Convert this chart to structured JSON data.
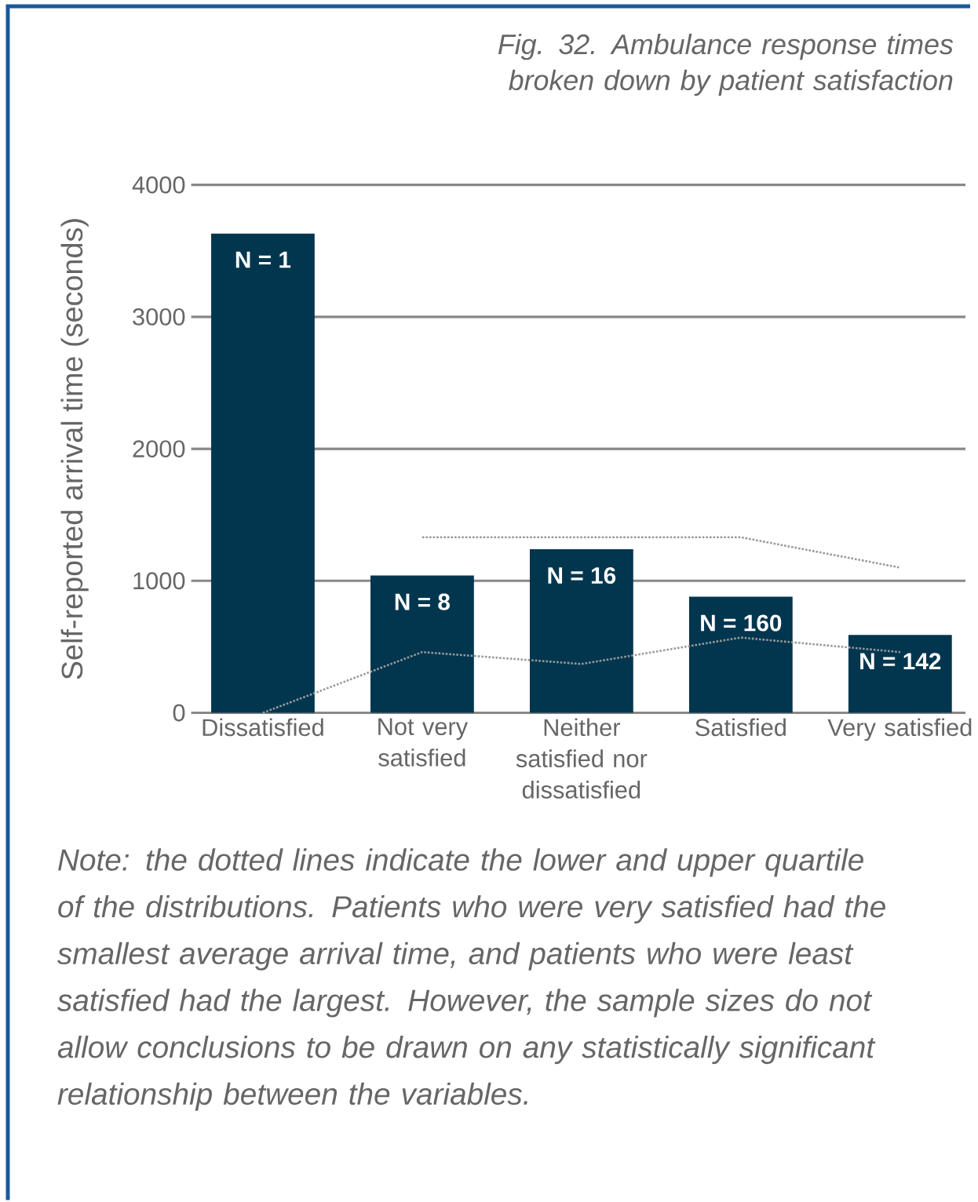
{
  "chart_data": {
    "type": "bar",
    "title": "Fig. 32. Ambulance response times broken down by patient satisfaction",
    "ylabel": "Self-reported arrival time (seconds)",
    "categories": [
      "Dissatisfied",
      "Not very satisfied",
      "Neither satisfied nor dissatisfied",
      "Satisfied",
      "Very satisfied"
    ],
    "series": [
      {
        "color": "#02364f",
        "values": [
          3630,
          1040,
          1240,
          880,
          590
        ]
      },
      {
        "type": "line",
        "color": "#999999",
        "values": [
          null,
          1330,
          1330,
          1330,
          1100
        ]
      },
      {
        "type": "line",
        "color": "#999999",
        "values": [
          0,
          460,
          370,
          570,
          460
        ]
      }
    ],
    "ylim": [
      0,
      4000
    ],
    "yticks": [
      0,
      1000,
      2000,
      3000,
      4000
    ],
    "grid": "y",
    "line_style": "dotted",
    "marker": "none",
    "annotations": [
      {
        "text": "N = 1",
        "x": "Dissatisfied",
        "y": 3630
      },
      {
        "text": "N = 8",
        "x": "Not very satisfied",
        "y": 1040
      },
      {
        "text": "N = 16",
        "x": "Neither satisfied nor dissatisfied",
        "y": 1240
      },
      {
        "text": "N = 160",
        "x": "Satisfied",
        "y": 880
      },
      {
        "text": "N = 142",
        "x": "Very satisfied",
        "y": 590
      },
      "Note: the dotted lines indicate the lower and upper quartile of the distributions. Patients who were very satisfied had the smallest average arrival time, and patients who were least satisfied had the largest. However, the sample sizes do not allow conclusions to be drawn on any statistically significant relationship between the variables."
    ]
  }
}
